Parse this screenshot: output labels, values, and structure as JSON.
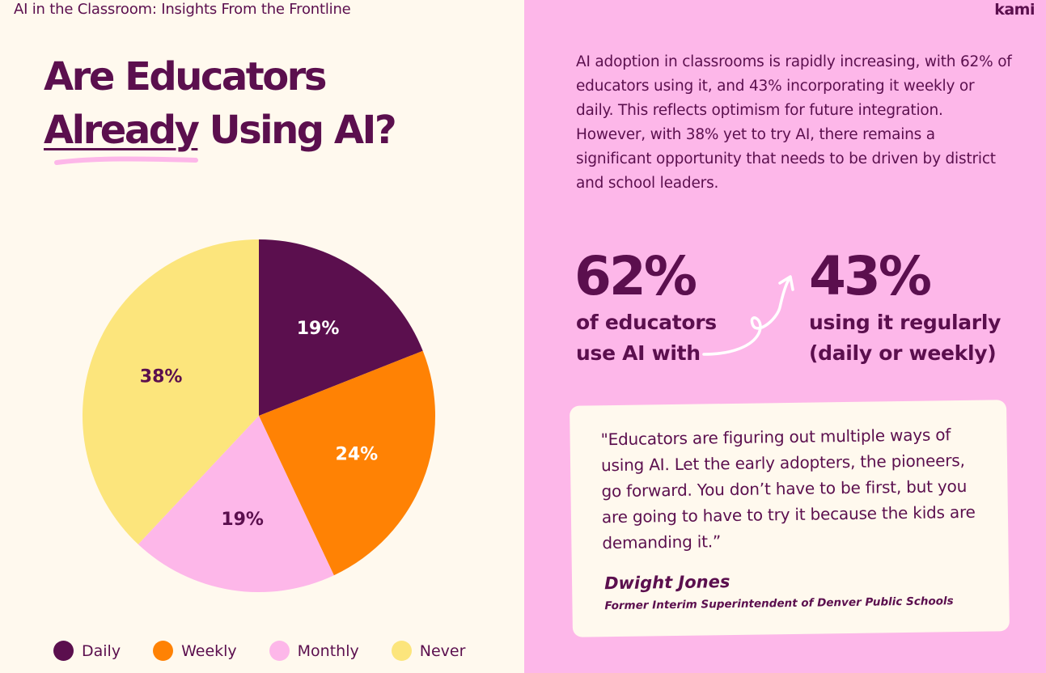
{
  "header": {
    "title": "AI in the Classroom: Insights From the Frontline",
    "brand": "kami"
  },
  "heading": {
    "line1": "Are Educators",
    "line2_underlined": "Already",
    "line2_rest": " Using AI?"
  },
  "summary": "AI adoption in classrooms is rapidly increasing, with 62% of educators using it, and 43% incorporating it weekly or daily. This reflects optimism for future integration. However, with 38% yet to try AI, there remains a significant opportunity that needs to be driven by district and school leaders.",
  "stats": [
    {
      "value": "62%",
      "caption": "of educators use AI with"
    },
    {
      "value": "43%",
      "caption": "using it regularly (daily or weekly)"
    }
  ],
  "quote": {
    "text": "\"Educators are figuring out multiple ways of using AI. Let the early adopters, the pioneers, go forward. You don’t have to be first, but you are going to have to try it because the kids are demanding it.”",
    "author": "Dwight Jones",
    "role": "Former Interim Superintendent of Denver Public Schools"
  },
  "colors": {
    "dark_purple": "#5B0F4E",
    "orange": "#FF8204",
    "pink": "#FDB7E9",
    "yellow": "#FCE57C",
    "cream": "#FFF9EE"
  },
  "chart_data": {
    "type": "pie",
    "title": "",
    "categories": [
      "Daily",
      "Weekly",
      "Monthly",
      "Never"
    ],
    "values": [
      19,
      24,
      19,
      38
    ],
    "labels": [
      "19%",
      "24%",
      "19%",
      "38%"
    ],
    "colors": [
      "#5B0F4E",
      "#FF8204",
      "#FDB7E9",
      "#FCE57C"
    ],
    "label_colors": [
      "#FFFFFF",
      "#FFFFFF",
      "#5B0F4E",
      "#5B0F4E"
    ],
    "legend_position": "bottom"
  }
}
